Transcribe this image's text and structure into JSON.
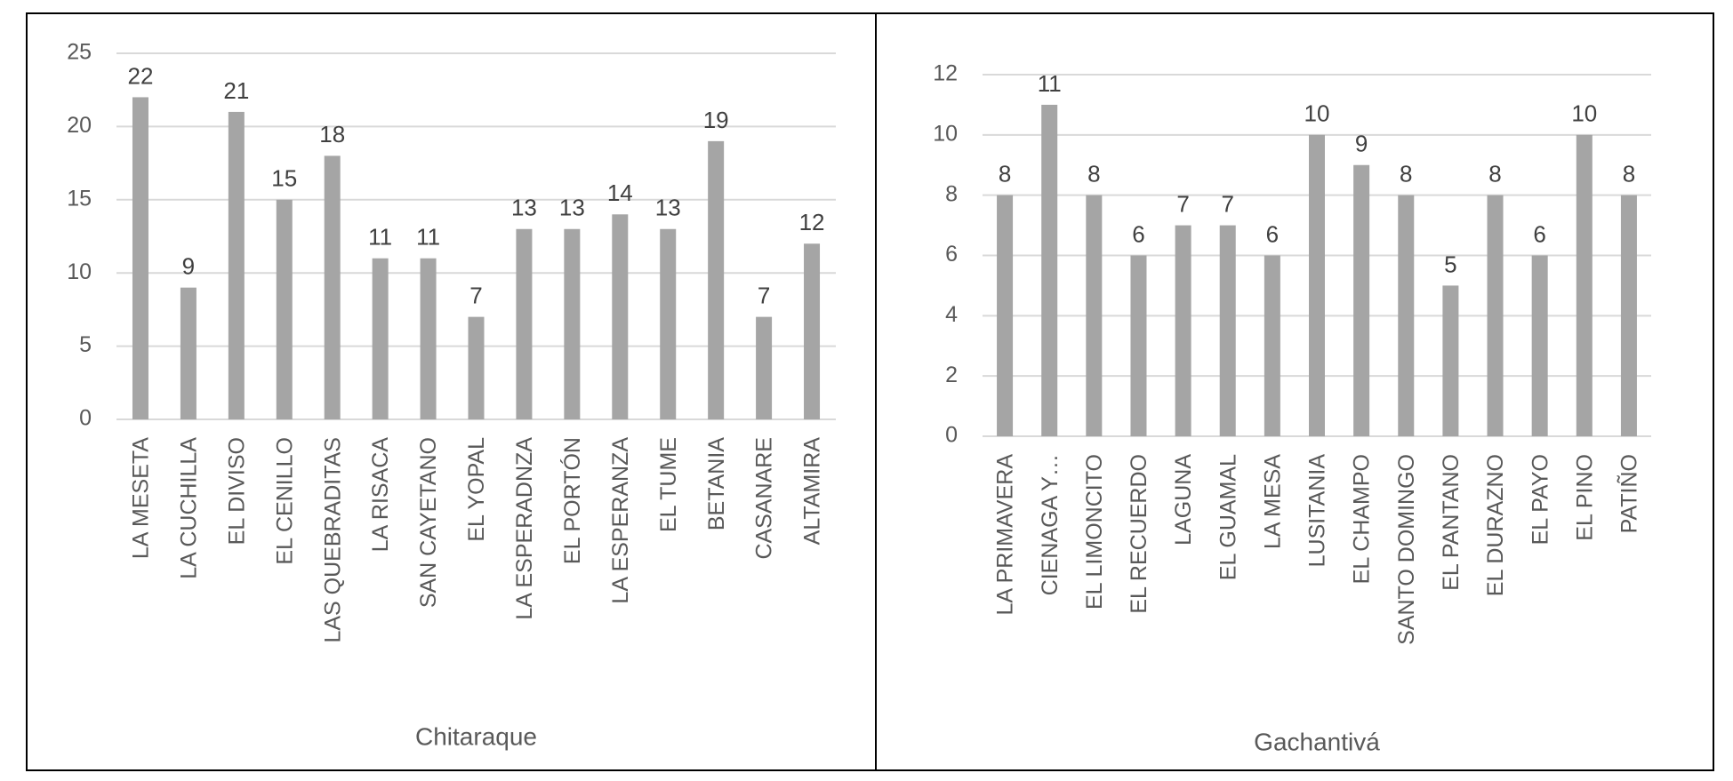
{
  "chart_data": [
    {
      "type": "bar",
      "title": "Chitaraque",
      "categories": [
        "LA MESETA",
        "LA CUCHILLA",
        "EL DIVISO",
        "EL CENILLO",
        "LAS QUEBRADITAS",
        "LA RISACA",
        "SAN CAYETANO",
        "EL YOPAL",
        "LA ESPERADNZA",
        "EL PORTÓN",
        "LA ESPERANZA",
        "EL TUME",
        "BETANIA",
        "CASANARE",
        "ALTAMIRA"
      ],
      "values": [
        22,
        9,
        21,
        15,
        18,
        11,
        11,
        7,
        13,
        13,
        14,
        13,
        19,
        7,
        12
      ],
      "color": "#a5a5a5",
      "ylim": [
        0,
        25
      ],
      "yticks": [
        0,
        5,
        10,
        15,
        20,
        25
      ],
      "grid": true
    },
    {
      "type": "bar",
      "title": "Gachantivá",
      "categories": [
        "LA PRIMAVERA",
        "CIENAGA Y…",
        "EL LIMONCITO",
        "EL RECUERDO",
        "LAGUNA",
        "EL GUAMAL",
        "LA MESA",
        "LUSITANIA",
        "EL CHAMPO",
        "SANTO DOMINGO",
        "EL PANTANO",
        "EL DURAZNO",
        "EL PAYO",
        "EL PINO",
        "PATIÑO"
      ],
      "values": [
        8,
        11,
        8,
        6,
        7,
        7,
        6,
        10,
        9,
        8,
        5,
        8,
        6,
        10,
        8
      ],
      "color": "#a5a5a5",
      "ylim": [
        0,
        12
      ],
      "yticks": [
        0,
        2,
        4,
        6,
        8,
        10,
        12
      ],
      "grid": true
    }
  ]
}
